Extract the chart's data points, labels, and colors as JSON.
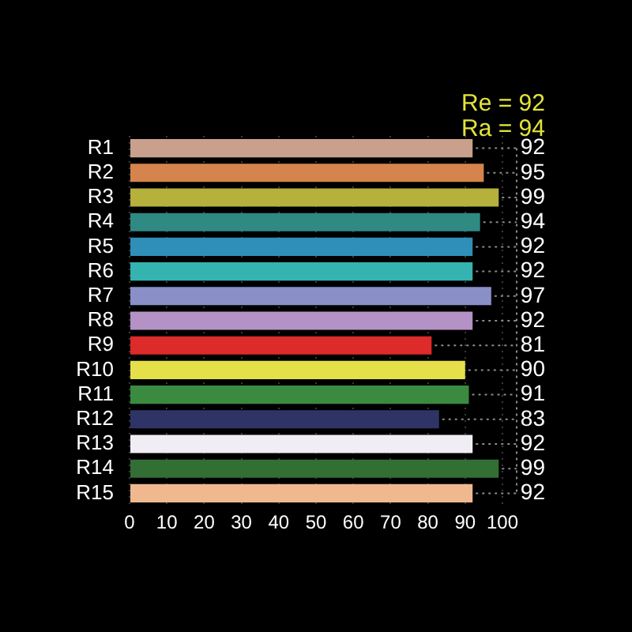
{
  "chart_data": {
    "type": "bar",
    "orientation": "horizontal",
    "categories": [
      "R1",
      "R2",
      "R3",
      "R4",
      "R5",
      "R6",
      "R7",
      "R8",
      "R9",
      "R10",
      "R11",
      "R12",
      "R13",
      "R14",
      "R15"
    ],
    "values": [
      92,
      95,
      99,
      94,
      92,
      92,
      97,
      92,
      81,
      90,
      91,
      83,
      92,
      99,
      92
    ],
    "colors": [
      "#c9a08c",
      "#d4844c",
      "#b5b13c",
      "#2f8a84",
      "#2f8fb8",
      "#35b3b0",
      "#8a8fc8",
      "#b592c5",
      "#dd2a2a",
      "#e5e04a",
      "#3a8a40",
      "#2e3466",
      "#f0eef4",
      "#336e35",
      "#f0b88f"
    ],
    "xlim": [
      0,
      100
    ],
    "xticks": [
      0,
      10,
      20,
      30,
      40,
      50,
      60,
      70,
      80,
      90,
      100
    ],
    "grid": "x",
    "data_labels": true,
    "annotations": [
      "Re = 92",
      "Ra = 94"
    ]
  }
}
